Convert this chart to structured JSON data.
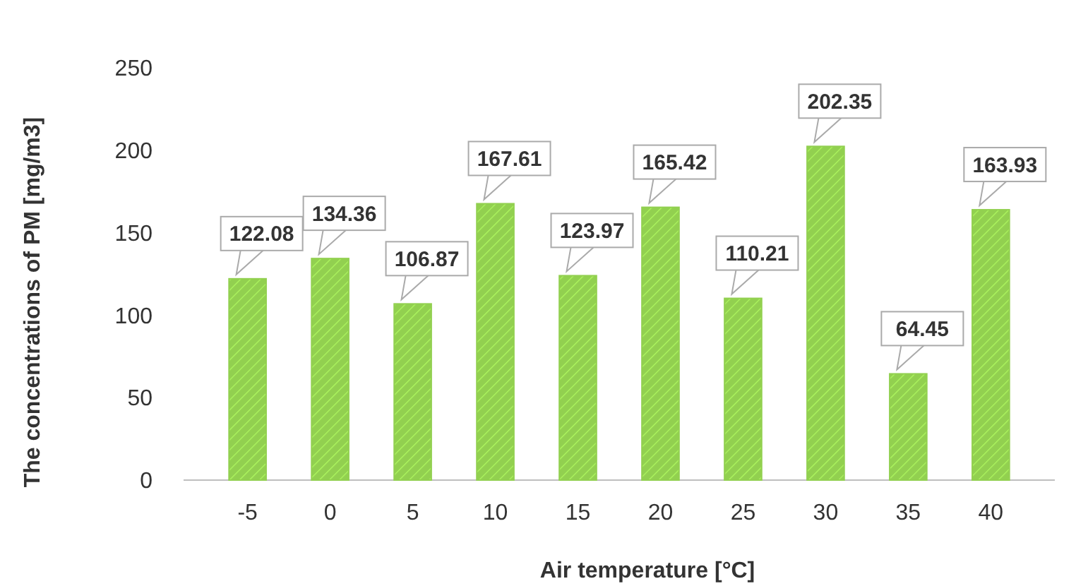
{
  "chart_data": {
    "type": "bar",
    "xlabel": "Air temperature [°C]",
    "ylabel": "The concentrations of PM [mg/m3]",
    "categories": [
      "-5",
      "0",
      "5",
      "10",
      "15",
      "20",
      "25",
      "30",
      "35",
      "40"
    ],
    "values": [
      122.08,
      134.36,
      106.87,
      167.61,
      123.97,
      165.42,
      110.21,
      202.35,
      64.45,
      163.93
    ],
    "color": "#92d050",
    "ylim": [
      0,
      250
    ],
    "yticks": [
      0,
      50,
      100,
      150,
      200,
      250
    ],
    "grid": false,
    "data_labels": true
  }
}
